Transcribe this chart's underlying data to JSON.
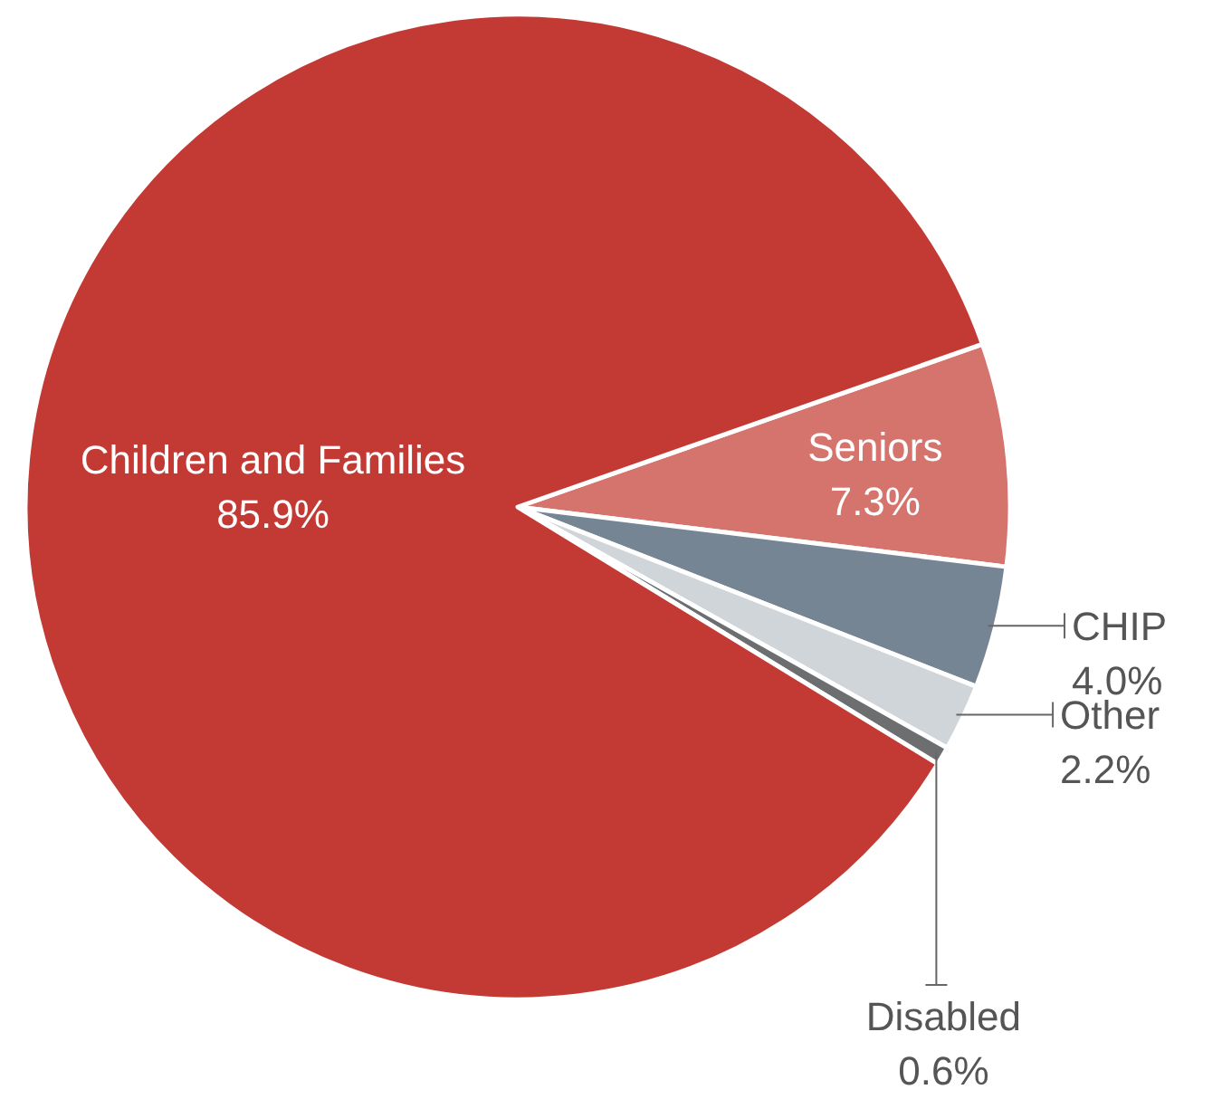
{
  "chart_data": {
    "type": "pie",
    "categories": [
      "Seniors",
      "CHIP",
      "Other",
      "Disabled",
      "Children and Families"
    ],
    "values": [
      7.3,
      4.0,
      2.2,
      0.6,
      85.9
    ],
    "value_labels": [
      "7.3%",
      "4.0%",
      "2.2%",
      "0.6%",
      "85.9%"
    ],
    "colors": [
      "#d5736d",
      "#768594",
      "#d0d5d9",
      "#6d6e70",
      "#c23a33"
    ]
  }
}
